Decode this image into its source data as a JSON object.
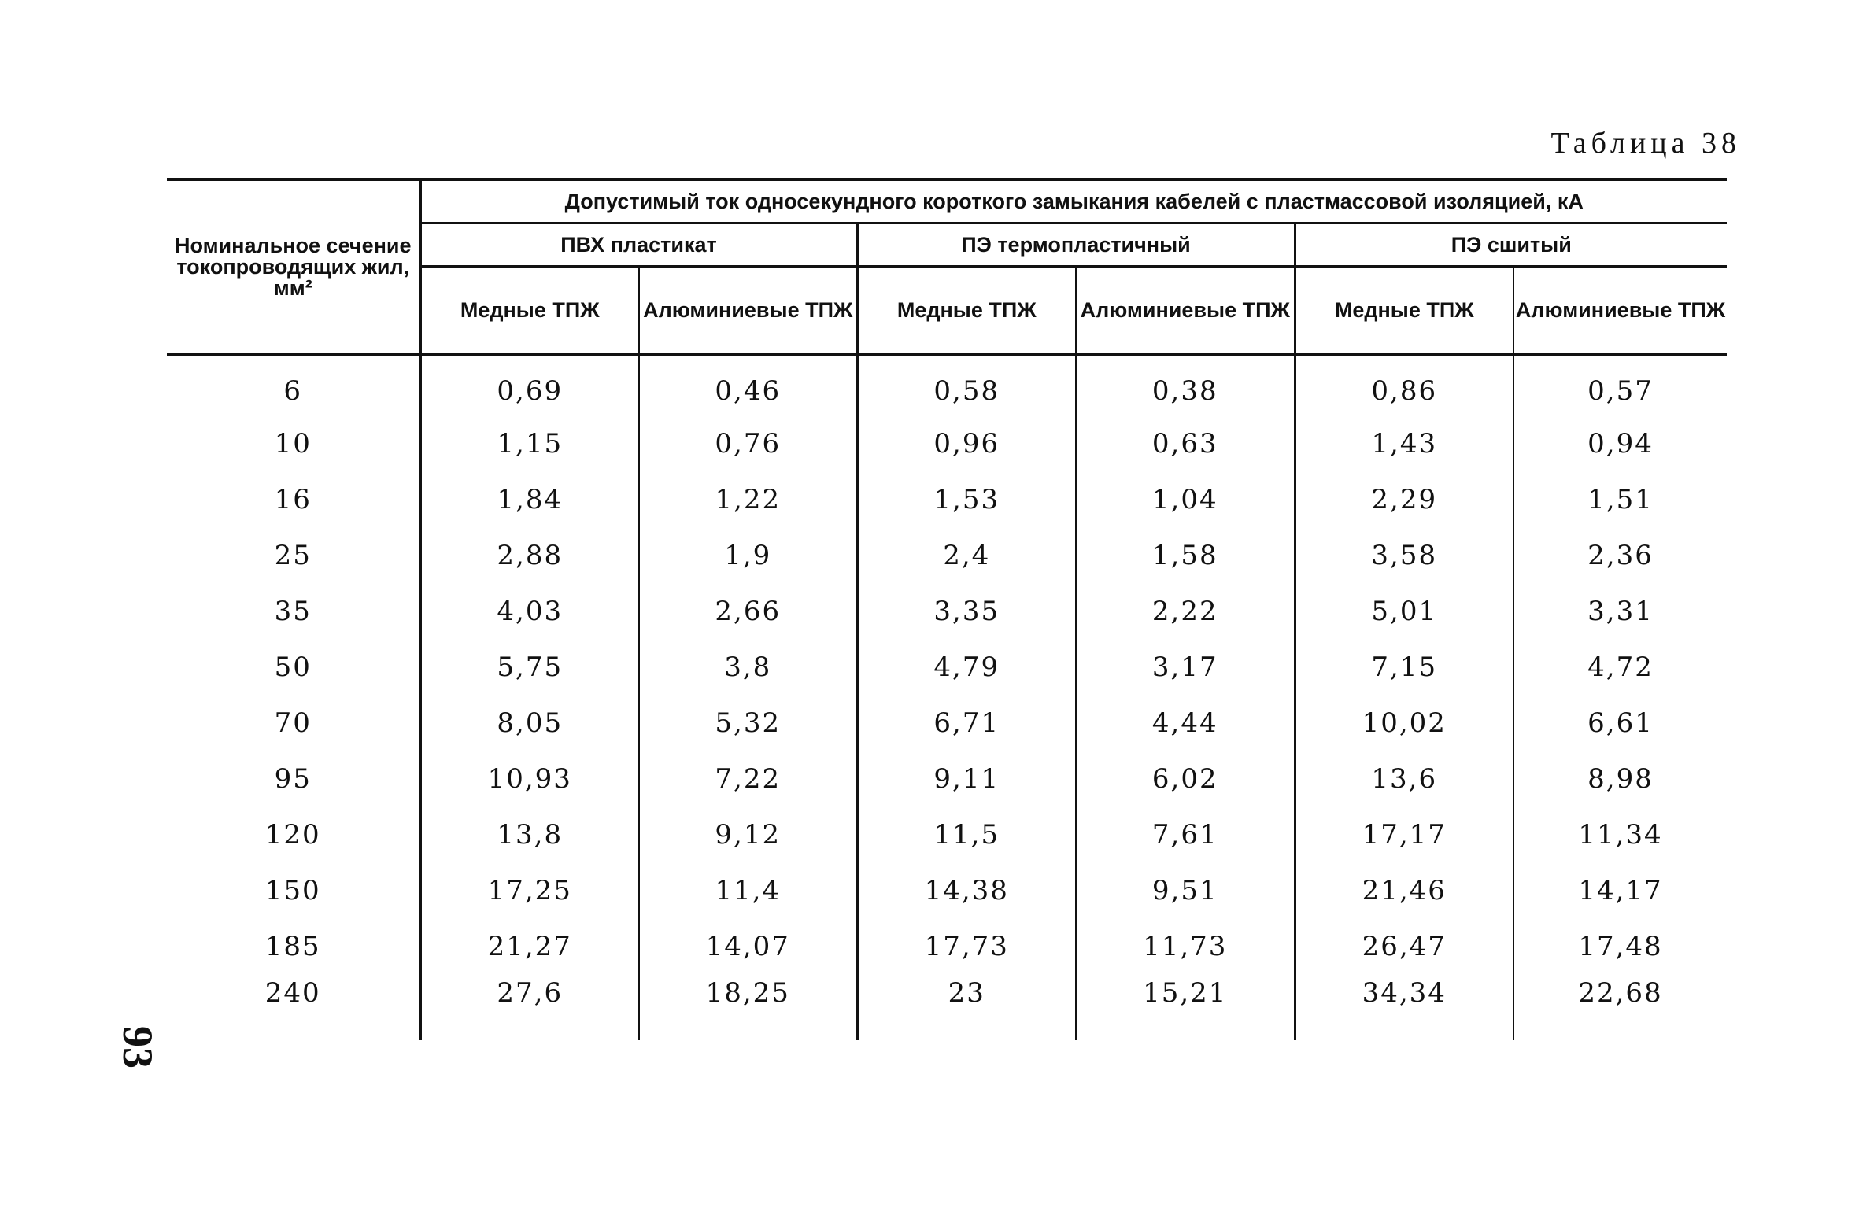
{
  "caption": "Таблица 38",
  "page_number": "93",
  "header": {
    "row_label": "Номинальное сечение токопроводящих жил, мм²",
    "main_title": "Допустимый ток односекундного короткого замыкания кабелей с пластмассовой изоляцией, кА",
    "groups": [
      {
        "label": "ПВХ пластикат"
      },
      {
        "label": "ПЭ термопластичный"
      },
      {
        "label": "ПЭ сшитый"
      }
    ],
    "subcolumns": [
      {
        "label": "Медные ТПЖ"
      },
      {
        "label": "Алюминиевые ТПЖ"
      },
      {
        "label": "Медные ТПЖ"
      },
      {
        "label": "Алюминиевые ТПЖ"
      },
      {
        "label": "Медные ТПЖ"
      },
      {
        "label": "Алюминиевые ТПЖ"
      }
    ]
  },
  "rows": [
    {
      "section": "6",
      "values": [
        "0,69",
        "0,46",
        "0,58",
        "0,38",
        "0,86",
        "0,57"
      ]
    },
    {
      "section": "10",
      "values": [
        "1,15",
        "0,76",
        "0,96",
        "0,63",
        "1,43",
        "0,94"
      ]
    },
    {
      "section": "16",
      "values": [
        "1,84",
        "1,22",
        "1,53",
        "1,04",
        "2,29",
        "1,51"
      ]
    },
    {
      "section": "25",
      "values": [
        "2,88",
        "1,9",
        "2,4",
        "1,58",
        "3,58",
        "2,36"
      ]
    },
    {
      "section": "35",
      "values": [
        "4,03",
        "2,66",
        "3,35",
        "2,22",
        "5,01",
        "3,31"
      ]
    },
    {
      "section": "50",
      "values": [
        "5,75",
        "3,8",
        "4,79",
        "3,17",
        "7,15",
        "4,72"
      ]
    },
    {
      "section": "70",
      "values": [
        "8,05",
        "5,32",
        "6,71",
        "4,44",
        "10,02",
        "6,61"
      ]
    },
    {
      "section": "95",
      "values": [
        "10,93",
        "7,22",
        "9,11",
        "6,02",
        "13,6",
        "8,98"
      ]
    },
    {
      "section": "120",
      "values": [
        "13,8",
        "9,12",
        "11,5",
        "7,61",
        "17,17",
        "11,34"
      ]
    },
    {
      "section": "150",
      "values": [
        "17,25",
        "11,4",
        "14,38",
        "9,51",
        "21,46",
        "14,17"
      ]
    },
    {
      "section": "185",
      "values": [
        "21,27",
        "14,07",
        "17,73",
        "11,73",
        "26,47",
        "17,48"
      ]
    },
    {
      "section": "240",
      "values": [
        "27,6",
        "18,25",
        "23",
        "15,21",
        "34,34",
        "22,68"
      ]
    }
  ]
}
